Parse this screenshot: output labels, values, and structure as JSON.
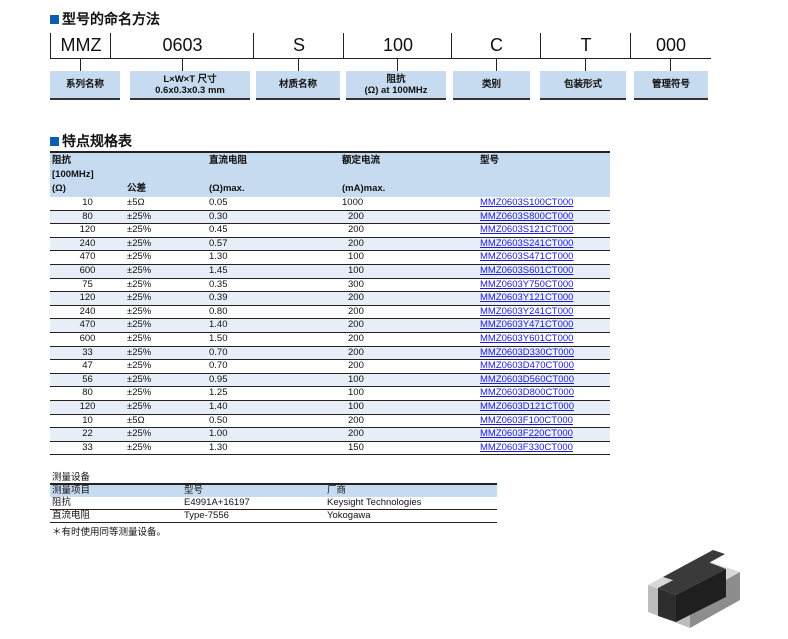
{
  "naming": {
    "title": "型号的命名方法",
    "codes": [
      "MMZ",
      "0603",
      "S",
      "100",
      "C",
      "T",
      "000"
    ],
    "labels": [
      [
        "系列名称"
      ],
      [
        "L×W×T 尺寸",
        "0.6x0.3x0.3 mm"
      ],
      [
        "材质名称"
      ],
      [
        "阻抗",
        "(Ω) at 100MHz"
      ],
      [
        "类别"
      ],
      [
        "包装形式"
      ],
      [
        "管理符号"
      ]
    ]
  },
  "spec": {
    "title": "特点规格表",
    "headers": {
      "impedance": "阻抗",
      "freq": "[100MHz]",
      "imp_unit": "(Ω)",
      "tolerance": "公差",
      "dcr": "直流电阻",
      "dcr_unit": "(Ω)max.",
      "current": "额定电流",
      "current_unit": "(mA)max.",
      "part": "型号"
    },
    "rows": [
      [
        "10",
        "±5Ω",
        "0.05",
        "1000",
        "MMZ0603S100CT000"
      ],
      [
        "80",
        "±25%",
        "0.30",
        "200",
        "MMZ0603S800CT000"
      ],
      [
        "120",
        "±25%",
        "0.45",
        "200",
        "MMZ0603S121CT000"
      ],
      [
        "240",
        "±25%",
        "0.57",
        "200",
        "MMZ0603S241CT000"
      ],
      [
        "470",
        "±25%",
        "1.30",
        "100",
        "MMZ0603S471CT000"
      ],
      [
        "600",
        "±25%",
        "1.45",
        "100",
        "MMZ0603S601CT000"
      ],
      [
        "75",
        "±25%",
        "0.35",
        "300",
        "MMZ0603Y750CT000"
      ],
      [
        "120",
        "±25%",
        "0.39",
        "200",
        "MMZ0603Y121CT000"
      ],
      [
        "240",
        "±25%",
        "0.80",
        "200",
        "MMZ0603Y241CT000"
      ],
      [
        "470",
        "±25%",
        "1.40",
        "200",
        "MMZ0603Y471CT000"
      ],
      [
        "600",
        "±25%",
        "1.50",
        "200",
        "MMZ0603Y601CT000"
      ],
      [
        "33",
        "±25%",
        "0.70",
        "200",
        "MMZ0603D330CT000"
      ],
      [
        "47",
        "±25%",
        "0.70",
        "200",
        "MMZ0603D470CT000"
      ],
      [
        "56",
        "±25%",
        "0.95",
        "100",
        "MMZ0603D560CT000"
      ],
      [
        "80",
        "±25%",
        "1.25",
        "100",
        "MMZ0603D800CT000"
      ],
      [
        "120",
        "±25%",
        "1.40",
        "100",
        "MMZ0603D121CT000"
      ],
      [
        "10",
        "±5Ω",
        "0.50",
        "200",
        "MMZ0603F100CT000"
      ],
      [
        "22",
        "±25%",
        "1.00",
        "200",
        "MMZ0603F220CT000"
      ],
      [
        "33",
        "±25%",
        "1.30",
        "150",
        "MMZ0603F330CT000"
      ]
    ]
  },
  "measurement": {
    "title": "测量设备",
    "headers": [
      "测量项目",
      "型号",
      "厂商"
    ],
    "rows": [
      [
        "阻抗",
        "E4991A+16197",
        "Keysight Technologies"
      ],
      [
        "直流电阻",
        "Type-7556",
        "Yokogawa"
      ]
    ],
    "note": "＊有时使用同等测量设备。"
  },
  "colors": {
    "accent": "#0b5fb0",
    "header_bg": "#c6dbef",
    "row_alt": "#e8eef7",
    "link": "#1a1adc"
  }
}
